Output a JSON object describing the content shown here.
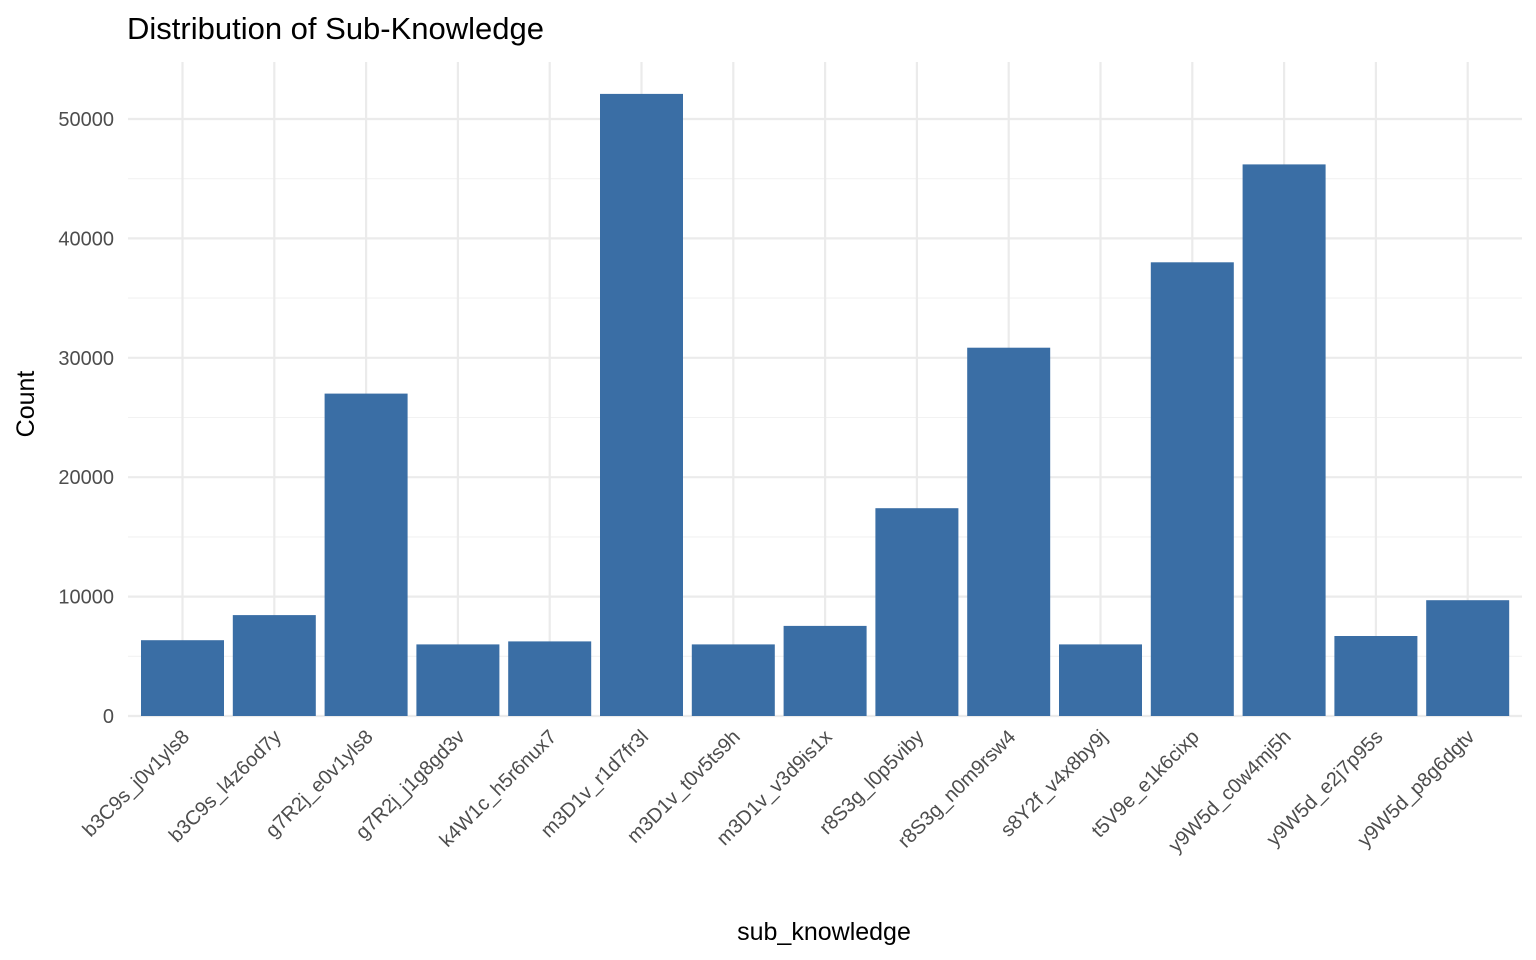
{
  "chart_data": {
    "type": "bar",
    "title": "Distribution of Sub-Knowledge",
    "xlabel": "sub_knowledge",
    "ylabel": "Count",
    "categories": [
      "b3C9s_j0v1yls8",
      "b3C9s_l4z6od7y",
      "g7R2j_e0v1yls8",
      "g7R2j_j1g8gd3v",
      "k4W1c_h5r6nux7",
      "m3D1v_r1d7fr3l",
      "m3D1v_t0v5ts9h",
      "m3D1v_v3d9is1x",
      "r8S3g_l0p5viby",
      "r8S3g_n0m9rsw4",
      "s8Y2f_v4x8by9j",
      "t5V9e_e1k6cixp",
      "y9W5d_c0w4mj5h",
      "y9W5d_e2j7p95s",
      "y9W5d_p8g6dgtv"
    ],
    "values": [
      6350,
      8450,
      27000,
      6000,
      6250,
      52100,
      6000,
      7550,
      17400,
      30850,
      6000,
      38000,
      46200,
      6700,
      9700
    ],
    "ylim": [
      0,
      55000
    ],
    "yticks": [
      0,
      10000,
      20000,
      30000,
      40000,
      50000
    ],
    "bar_color": "#3a6ea5",
    "grid": true,
    "legend": "none"
  }
}
